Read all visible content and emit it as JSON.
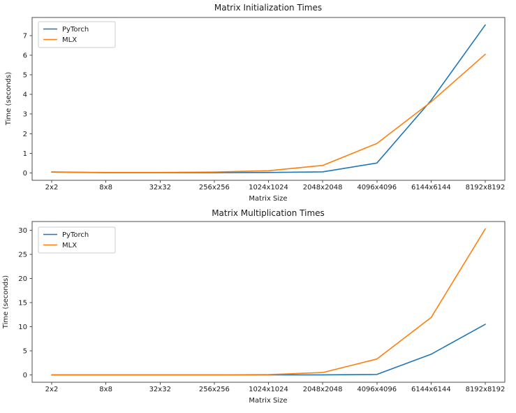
{
  "figure": {
    "background": "#ffffff"
  },
  "chart_data": [
    {
      "type": "line",
      "title": "Matrix Initialization Times",
      "xlabel": "Matrix Size",
      "ylabel": "Time (seconds)",
      "categories": [
        "2x2",
        "8x8",
        "32x32",
        "256x256",
        "1024x1024",
        "2048x2048",
        "4096x4096",
        "6144x6144",
        "8192x8192"
      ],
      "yticks": [
        0,
        1,
        2,
        3,
        4,
        5,
        6,
        7
      ],
      "ylim": [
        -0.38,
        7.93
      ],
      "grid": false,
      "legend_position": "upper-left",
      "series": [
        {
          "name": "PyTorch",
          "color": "#1f77b4",
          "values": [
            0.04,
            0.01,
            0.01,
            0.01,
            0.02,
            0.05,
            0.5,
            3.7,
            7.55
          ]
        },
        {
          "name": "MLX",
          "color": "#ff7f0e",
          "values": [
            0.05,
            0.02,
            0.02,
            0.04,
            0.11,
            0.38,
            1.5,
            3.62,
            6.05
          ]
        }
      ]
    },
    {
      "type": "line",
      "title": "Matrix Multiplication Times",
      "xlabel": "Matrix Size",
      "ylabel": "Time (seconds)",
      "categories": [
        "2x2",
        "8x8",
        "32x32",
        "256x256",
        "1024x1024",
        "2048x2048",
        "4096x4096",
        "6144x6144",
        "8192x8192"
      ],
      "yticks": [
        0,
        5,
        10,
        15,
        20,
        25,
        30
      ],
      "ylim": [
        -1.52,
        31.82
      ],
      "grid": false,
      "legend_position": "upper-left",
      "series": [
        {
          "name": "PyTorch",
          "color": "#1f77b4",
          "values": [
            0.01,
            0.01,
            0.01,
            0.01,
            0.01,
            0.02,
            0.1,
            4.3,
            10.5
          ]
        },
        {
          "name": "MLX",
          "color": "#ff7f0e",
          "values": [
            0.01,
            0.01,
            0.01,
            0.02,
            0.06,
            0.5,
            3.3,
            11.9,
            30.3
          ]
        }
      ]
    }
  ]
}
